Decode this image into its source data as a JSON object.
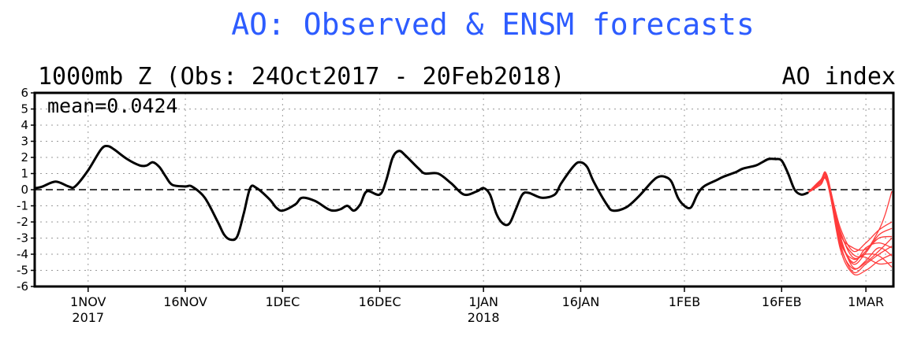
{
  "colors": {
    "title": "#2d5cff",
    "observed": "#000000",
    "forecast": "#ff3b3b",
    "grid": "#9a9a9a",
    "zero_line": "#000000"
  },
  "chart_data": {
    "type": "line",
    "title": "AO: Observed & ENSM forecasts",
    "subtitle": "1000mb Z (Obs: 24Oct2017 - 20Feb2018)",
    "right_label": "AO index",
    "annotation": "mean=0.0424",
    "ylim": [
      -6,
      6
    ],
    "yticks": [
      "6",
      "5",
      "4",
      "3",
      "2",
      "1",
      "0",
      "-1",
      "-2",
      "-3",
      "-4",
      "-5",
      "-6"
    ],
    "xlim": [
      "2017-10-24",
      "2018-03-05"
    ],
    "xticks": [
      {
        "date": "2017-11-01",
        "label": "1NOV",
        "year": "2017"
      },
      {
        "date": "2017-11-16",
        "label": "16NOV",
        "year": ""
      },
      {
        "date": "2017-12-01",
        "label": "1DEC",
        "year": ""
      },
      {
        "date": "2017-12-16",
        "label": "16DEC",
        "year": ""
      },
      {
        "date": "2018-01-01",
        "label": "1JAN",
        "year": "2018"
      },
      {
        "date": "2018-01-16",
        "label": "16JAN",
        "year": ""
      },
      {
        "date": "2018-02-01",
        "label": "1FEB",
        "year": ""
      },
      {
        "date": "2018-02-16",
        "label": "16FEB",
        "year": ""
      },
      {
        "date": "2018-03-01",
        "label": "1MAR",
        "year": ""
      }
    ],
    "grid": true,
    "series": [
      {
        "type": "observed",
        "points": [
          [
            "2017-10-24",
            0.1
          ],
          [
            "2017-10-25",
            0.2
          ],
          [
            "2017-10-27",
            0.5
          ],
          [
            "2017-10-29",
            0.2
          ],
          [
            "2017-10-30",
            0.2
          ],
          [
            "2017-11-01",
            1.2
          ],
          [
            "2017-11-03",
            2.5
          ],
          [
            "2017-11-04",
            2.7
          ],
          [
            "2017-11-05",
            2.5
          ],
          [
            "2017-11-07",
            1.9
          ],
          [
            "2017-11-09",
            1.5
          ],
          [
            "2017-11-10",
            1.5
          ],
          [
            "2017-11-11",
            1.7
          ],
          [
            "2017-11-12",
            1.4
          ],
          [
            "2017-11-13",
            0.8
          ],
          [
            "2017-11-14",
            0.3
          ],
          [
            "2017-11-16",
            0.2
          ],
          [
            "2017-11-17",
            0.2
          ],
          [
            "2017-11-19",
            -0.5
          ],
          [
            "2017-11-21",
            -2.0
          ],
          [
            "2017-11-22",
            -2.8
          ],
          [
            "2017-11-23",
            -3.1
          ],
          [
            "2017-11-24",
            -2.9
          ],
          [
            "2017-11-25",
            -1.5
          ],
          [
            "2017-11-26",
            0.1
          ],
          [
            "2017-11-27",
            0.1
          ],
          [
            "2017-11-29",
            -0.6
          ],
          [
            "2017-11-30",
            -1.1
          ],
          [
            "2017-12-01",
            -1.3
          ],
          [
            "2017-12-03",
            -0.9
          ],
          [
            "2017-12-04",
            -0.5
          ],
          [
            "2017-12-06",
            -0.7
          ],
          [
            "2017-12-08",
            -1.2
          ],
          [
            "2017-12-09",
            -1.3
          ],
          [
            "2017-12-10",
            -1.2
          ],
          [
            "2017-12-11",
            -1.0
          ],
          [
            "2017-12-12",
            -1.3
          ],
          [
            "2017-12-13",
            -0.9
          ],
          [
            "2017-12-14",
            -0.1
          ],
          [
            "2017-12-16",
            -0.3
          ],
          [
            "2017-12-17",
            0.6
          ],
          [
            "2017-12-18",
            2.0
          ],
          [
            "2017-12-19",
            2.4
          ],
          [
            "2017-12-20",
            2.1
          ],
          [
            "2017-12-22",
            1.3
          ],
          [
            "2017-12-23",
            1.0
          ],
          [
            "2017-12-25",
            1.0
          ],
          [
            "2017-12-27",
            0.4
          ],
          [
            "2017-12-29",
            -0.3
          ],
          [
            "2017-12-31",
            -0.1
          ],
          [
            "2018-01-01",
            0.1
          ],
          [
            "2018-01-02",
            -0.3
          ],
          [
            "2018-01-03",
            -1.5
          ],
          [
            "2018-01-04",
            -2.1
          ],
          [
            "2018-01-05",
            -2.1
          ],
          [
            "2018-01-06",
            -1.2
          ],
          [
            "2018-01-07",
            -0.3
          ],
          [
            "2018-01-08",
            -0.2
          ],
          [
            "2018-01-10",
            -0.5
          ],
          [
            "2018-01-12",
            -0.3
          ],
          [
            "2018-01-13",
            0.4
          ],
          [
            "2018-01-15",
            1.5
          ],
          [
            "2018-01-16",
            1.7
          ],
          [
            "2018-01-17",
            1.4
          ],
          [
            "2018-01-18",
            0.5
          ],
          [
            "2018-01-20",
            -0.9
          ],
          [
            "2018-01-21",
            -1.3
          ],
          [
            "2018-01-23",
            -1.1
          ],
          [
            "2018-01-25",
            -0.4
          ],
          [
            "2018-01-27",
            0.5
          ],
          [
            "2018-01-28",
            0.8
          ],
          [
            "2018-01-29",
            0.8
          ],
          [
            "2018-01-30",
            0.5
          ],
          [
            "2018-01-31",
            -0.5
          ],
          [
            "2018-02-01",
            -1.0
          ],
          [
            "2018-02-02",
            -1.1
          ],
          [
            "2018-02-03",
            -0.3
          ],
          [
            "2018-02-04",
            0.2
          ],
          [
            "2018-02-06",
            0.6
          ],
          [
            "2018-02-07",
            0.8
          ],
          [
            "2018-02-09",
            1.1
          ],
          [
            "2018-02-10",
            1.3
          ],
          [
            "2018-02-12",
            1.5
          ],
          [
            "2018-02-13",
            1.7
          ],
          [
            "2018-02-14",
            1.9
          ],
          [
            "2018-02-15",
            1.9
          ],
          [
            "2018-02-16",
            1.8
          ],
          [
            "2018-02-17",
            1.0
          ],
          [
            "2018-02-18",
            0.0
          ],
          [
            "2018-02-19",
            -0.3
          ],
          [
            "2018-02-20",
            -0.2
          ]
        ]
      }
    ],
    "forecast_members": [
      [
        [
          "2018-02-20",
          -0.2
        ],
        [
          "2018-02-22",
          0.4
        ],
        [
          "2018-02-23",
          0.5
        ],
        [
          "2018-02-25",
          -2.5
        ],
        [
          "2018-02-27",
          -4.2
        ],
        [
          "2018-03-01",
          -3.8
        ],
        [
          "2018-03-03",
          -2.5
        ],
        [
          "2018-03-04",
          -1.5
        ],
        [
          "2018-03-05",
          -0.1
        ]
      ],
      [
        [
          "2018-02-20",
          -0.2
        ],
        [
          "2018-02-22",
          0.5
        ],
        [
          "2018-02-23",
          0.7
        ],
        [
          "2018-02-25",
          -2.3
        ],
        [
          "2018-02-27",
          -3.8
        ],
        [
          "2018-03-01",
          -3.3
        ],
        [
          "2018-03-03",
          -2.5
        ],
        [
          "2018-03-05",
          -2.0
        ]
      ],
      [
        [
          "2018-02-20",
          -0.2
        ],
        [
          "2018-02-22",
          0.3
        ],
        [
          "2018-02-23",
          0.6
        ],
        [
          "2018-02-25",
          -3.0
        ],
        [
          "2018-02-27",
          -4.6
        ],
        [
          "2018-03-01",
          -3.9
        ],
        [
          "2018-03-03",
          -2.8
        ],
        [
          "2018-03-05",
          -2.4
        ]
      ],
      [
        [
          "2018-02-20",
          -0.2
        ],
        [
          "2018-02-22",
          0.6
        ],
        [
          "2018-02-23",
          0.8
        ],
        [
          "2018-02-25",
          -2.8
        ],
        [
          "2018-02-27",
          -4.8
        ],
        [
          "2018-03-01",
          -4.5
        ],
        [
          "2018-03-03",
          -3.8
        ],
        [
          "2018-03-05",
          -3.0
        ]
      ],
      [
        [
          "2018-02-20",
          -0.2
        ],
        [
          "2018-02-22",
          0.5
        ],
        [
          "2018-02-23",
          0.6
        ],
        [
          "2018-02-25",
          -3.3
        ],
        [
          "2018-02-27",
          -5.1
        ],
        [
          "2018-03-01",
          -4.6
        ],
        [
          "2018-03-03",
          -4.0
        ],
        [
          "2018-03-05",
          -3.5
        ]
      ],
      [
        [
          "2018-02-20",
          -0.2
        ],
        [
          "2018-02-22",
          0.4
        ],
        [
          "2018-02-23",
          0.7
        ],
        [
          "2018-02-25",
          -3.6
        ],
        [
          "2018-02-27",
          -5.2
        ],
        [
          "2018-03-01",
          -5.0
        ],
        [
          "2018-03-03",
          -4.4
        ],
        [
          "2018-03-05",
          -4.0
        ]
      ],
      [
        [
          "2018-02-20",
          -0.2
        ],
        [
          "2018-02-22",
          0.6
        ],
        [
          "2018-02-23",
          0.9
        ],
        [
          "2018-02-25",
          -2.6
        ],
        [
          "2018-02-27",
          -4.0
        ],
        [
          "2018-03-01",
          -4.2
        ],
        [
          "2018-03-03",
          -4.6
        ],
        [
          "2018-03-05",
          -4.5
        ]
      ],
      [
        [
          "2018-02-20",
          -0.2
        ],
        [
          "2018-02-22",
          0.5
        ],
        [
          "2018-02-23",
          0.8
        ],
        [
          "2018-02-25",
          -2.9
        ],
        [
          "2018-02-27",
          -4.5
        ],
        [
          "2018-03-01",
          -3.6
        ],
        [
          "2018-03-03",
          -3.3
        ],
        [
          "2018-03-05",
          -3.6
        ]
      ],
      [
        [
          "2018-02-20",
          -0.2
        ],
        [
          "2018-02-22",
          0.4
        ],
        [
          "2018-02-23",
          0.5
        ],
        [
          "2018-02-25",
          -3.2
        ],
        [
          "2018-02-27",
          -4.3
        ],
        [
          "2018-03-01",
          -4.0
        ],
        [
          "2018-03-03",
          -4.1
        ],
        [
          "2018-03-05",
          -4.8
        ]
      ],
      [
        [
          "2018-02-20",
          -0.2
        ],
        [
          "2018-02-22",
          0.3
        ],
        [
          "2018-02-23",
          0.6
        ],
        [
          "2018-02-25",
          -2.7
        ],
        [
          "2018-02-27",
          -3.6
        ],
        [
          "2018-03-01",
          -3.7
        ],
        [
          "2018-03-03",
          -3.0
        ],
        [
          "2018-03-05",
          -2.9
        ]
      ],
      [
        [
          "2018-02-20",
          -0.2
        ],
        [
          "2018-02-22",
          0.5
        ],
        [
          "2018-02-23",
          0.7
        ],
        [
          "2018-02-25",
          -3.4
        ],
        [
          "2018-02-27",
          -4.9
        ],
        [
          "2018-03-01",
          -4.4
        ],
        [
          "2018-03-03",
          -3.6
        ],
        [
          "2018-03-05",
          -4.1
        ]
      ]
    ]
  }
}
